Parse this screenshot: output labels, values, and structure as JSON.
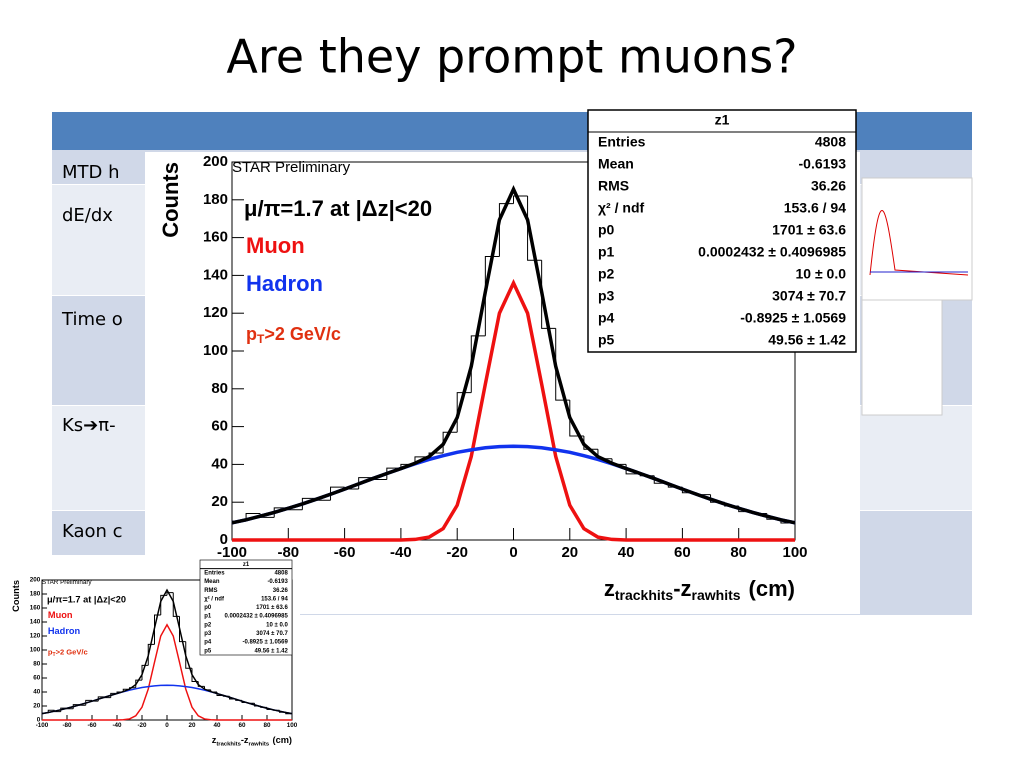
{
  "slide_title": "Are they prompt muons?",
  "table": {
    "rows": [
      "MTD h",
      "dE/dx",
      "Time o",
      "Ks➔π-",
      "Kaon c"
    ]
  },
  "chart_data": {
    "type": "histogram",
    "annotation": "STAR Preliminary",
    "y_label": "Counts",
    "x_label": {
      "z1": "z",
      "sub1": "trackhits",
      "z2": "-z",
      "sub2": "rawhits",
      "unit": "(cm)"
    },
    "ratio_label": "μ/π=1.7 at |Δz|<20",
    "pt_label": {
      "p": "p",
      "sub": "T",
      "rest": ">2 GeV/c"
    },
    "color": "#000000",
    "bins": [
      -100,
      -95,
      -90,
      -85,
      -80,
      -75,
      -70,
      -65,
      -60,
      -55,
      -50,
      -45,
      -40,
      -35,
      -30,
      -25,
      -20,
      -15,
      -10,
      -5,
      0,
      5,
      10,
      15,
      20,
      25,
      30,
      35,
      40,
      45,
      50,
      55,
      60,
      65,
      70,
      75,
      80,
      85,
      90,
      95,
      100
    ],
    "values": [
      10,
      14,
      12,
      17,
      16,
      22,
      21,
      28,
      27,
      33,
      32,
      38,
      40,
      44,
      46,
      57,
      78,
      108,
      150,
      178,
      182,
      148,
      112,
      74,
      55,
      48,
      43,
      40,
      35,
      34,
      30,
      28,
      25,
      24,
      20,
      18,
      15,
      14,
      11,
      9
    ],
    "x": [
      -100,
      -95,
      -90,
      -85,
      -80,
      -75,
      -70,
      -65,
      -60,
      -55,
      -50,
      -45,
      -40,
      -35,
      -30,
      -25,
      -20,
      -15,
      -10,
      -5,
      0,
      5,
      10,
      15,
      20,
      25,
      30,
      35,
      40,
      45,
      50,
      55,
      60,
      65,
      70,
      75,
      80,
      85,
      90,
      95,
      100
    ],
    "series": [
      {
        "name": "Muon",
        "color": "#ee1111",
        "values": [
          0,
          0,
          0,
          0,
          0,
          0,
          0,
          0,
          0,
          0,
          0,
          0,
          0,
          0.3,
          1.5,
          6.0,
          18.4,
          44.2,
          82.5,
          120,
          136,
          120,
          82.5,
          44.2,
          18.4,
          6.0,
          1.5,
          0.3,
          0,
          0,
          0,
          0,
          0,
          0,
          0,
          0,
          0,
          0,
          0,
          0,
          0
        ]
      },
      {
        "name": "Hadron",
        "color": "#1133ee",
        "values": [
          9.1,
          10.7,
          12.6,
          14.6,
          16.8,
          19.1,
          21.6,
          24.2,
          26.9,
          29.7,
          32.5,
          35.2,
          37.8,
          40.3,
          42.6,
          44.6,
          46.4,
          47.7,
          48.8,
          49.4,
          49.6,
          49.4,
          48.8,
          47.7,
          46.4,
          44.6,
          42.6,
          40.3,
          37.8,
          35.2,
          32.5,
          29.7,
          26.9,
          24.2,
          21.6,
          19.1,
          16.8,
          14.6,
          12.6,
          10.7,
          9.1
        ]
      },
      {
        "color": "#000000",
        "values": [
          9.1,
          10.7,
          12.6,
          14.6,
          16.8,
          19.1,
          21.6,
          24.2,
          26.9,
          29.7,
          32.5,
          35.2,
          37.8,
          40.6,
          44.1,
          50.6,
          64.8,
          91.9,
          131.3,
          169.4,
          185.6,
          169.4,
          131.3,
          91.9,
          64.8,
          50.6,
          44.1,
          40.6,
          37.8,
          35.2,
          32.5,
          29.7,
          26.9,
          24.2,
          21.6,
          19.1,
          16.8,
          14.6,
          12.6,
          10.7,
          9.1
        ]
      }
    ],
    "xlim": [
      -100,
      100
    ],
    "ylim": [
      0,
      200
    ],
    "xticks": [
      -100,
      -80,
      -60,
      -40,
      -20,
      0,
      20,
      40,
      60,
      80,
      100
    ],
    "yticks": [
      0,
      20,
      40,
      60,
      80,
      100,
      120,
      140,
      160,
      180,
      200
    ],
    "stats": {
      "title": "z1",
      "rows": [
        [
          "Entries",
          "4808"
        ],
        [
          "Mean",
          "-0.6193"
        ],
        [
          "RMS",
          "36.26"
        ],
        [
          "χ² / ndf",
          "153.6 / 94"
        ],
        [
          "p0",
          "1701 ± 63.6"
        ],
        [
          "p1",
          "0.0002432 ± 0.4096985"
        ],
        [
          "p2",
          "10 ± 0.0"
        ],
        [
          "p3",
          "3074 ± 70.7"
        ],
        [
          "p4",
          "-0.8925 ± 1.0569"
        ],
        [
          "p5",
          "49.56 ± 1.42"
        ]
      ]
    }
  }
}
